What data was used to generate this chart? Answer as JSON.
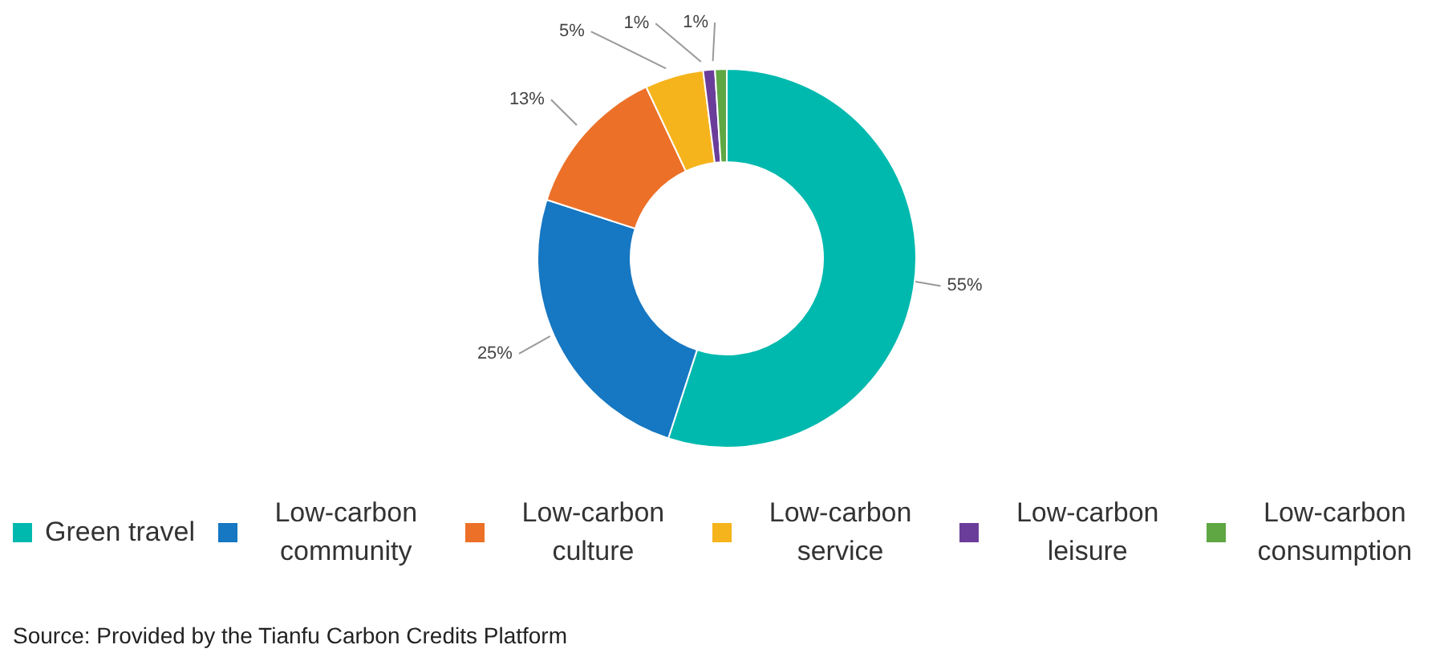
{
  "chart_data": {
    "type": "donut",
    "categories": [
      "Green travel",
      "Low-carbon community",
      "Low-carbon culture",
      "Low-carbon service",
      "Low-carbon leisure",
      "Low-carbon consumption"
    ],
    "values": [
      55,
      25,
      13,
      5,
      1,
      1
    ],
    "value_labels": [
      "55%",
      "25%",
      "13%",
      "5%",
      "1%",
      "1%"
    ],
    "colors": [
      "#00b9ae",
      "#1677c2",
      "#ec7027",
      "#f6b41c",
      "#6b3d9a",
      "#5ea743"
    ],
    "legend": "bottom",
    "annotations": [
      "Source: Provided by the Tianfu Carbon Credits Platform"
    ]
  }
}
